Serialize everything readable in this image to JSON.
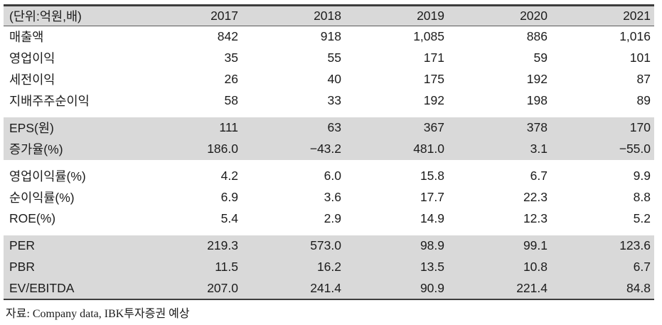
{
  "table": {
    "unit_label": "(단위:억원,배)",
    "years": [
      "2017",
      "2018",
      "2019",
      "2020",
      "2021"
    ],
    "rows": [
      {
        "label": "매출액",
        "shaded": false,
        "values": [
          "842",
          "918",
          "1,085",
          "886",
          "1,016"
        ]
      },
      {
        "label": "영업이익",
        "shaded": false,
        "values": [
          "35",
          "55",
          "171",
          "59",
          "101"
        ]
      },
      {
        "label": "세전이익",
        "shaded": false,
        "values": [
          "26",
          "40",
          "175",
          "192",
          "87"
        ]
      },
      {
        "label": "지배주주순이익",
        "shaded": false,
        "values": [
          "58",
          "33",
          "192",
          "198",
          "89"
        ]
      },
      {
        "label": "EPS(원)",
        "shaded": true,
        "values": [
          "111",
          "63",
          "367",
          "378",
          "170"
        ]
      },
      {
        "label": "증가율(%)",
        "shaded": true,
        "values": [
          "186.0",
          "−43.2",
          "481.0",
          "3.1",
          "−55.0"
        ]
      },
      {
        "label": "영업이익률(%)",
        "shaded": false,
        "values": [
          "4.2",
          "6.0",
          "15.8",
          "6.7",
          "9.9"
        ]
      },
      {
        "label": "순이익률(%)",
        "shaded": false,
        "values": [
          "6.9",
          "3.6",
          "17.7",
          "22.3",
          "8.8"
        ]
      },
      {
        "label": "ROE(%)",
        "shaded": false,
        "values": [
          "5.4",
          "2.9",
          "14.9",
          "12.3",
          "5.2"
        ]
      },
      {
        "label": "PER",
        "shaded": true,
        "values": [
          "219.3",
          "573.0",
          "98.9",
          "99.1",
          "123.6"
        ]
      },
      {
        "label": "PBR",
        "shaded": true,
        "values": [
          "11.5",
          "16.2",
          "13.5",
          "10.8",
          "6.7"
        ]
      },
      {
        "label": "EV/EBITDA",
        "shaded": true,
        "values": [
          "207.0",
          "241.4",
          "90.9",
          "221.4",
          "84.8"
        ]
      }
    ]
  },
  "footer": {
    "source_note": "자료: Company data, IBK투자증권 예상"
  },
  "colors": {
    "shaded_row_bg": "#d9d9d9",
    "border_dark": "#3d3d3d",
    "text": "#1c1c1c"
  }
}
